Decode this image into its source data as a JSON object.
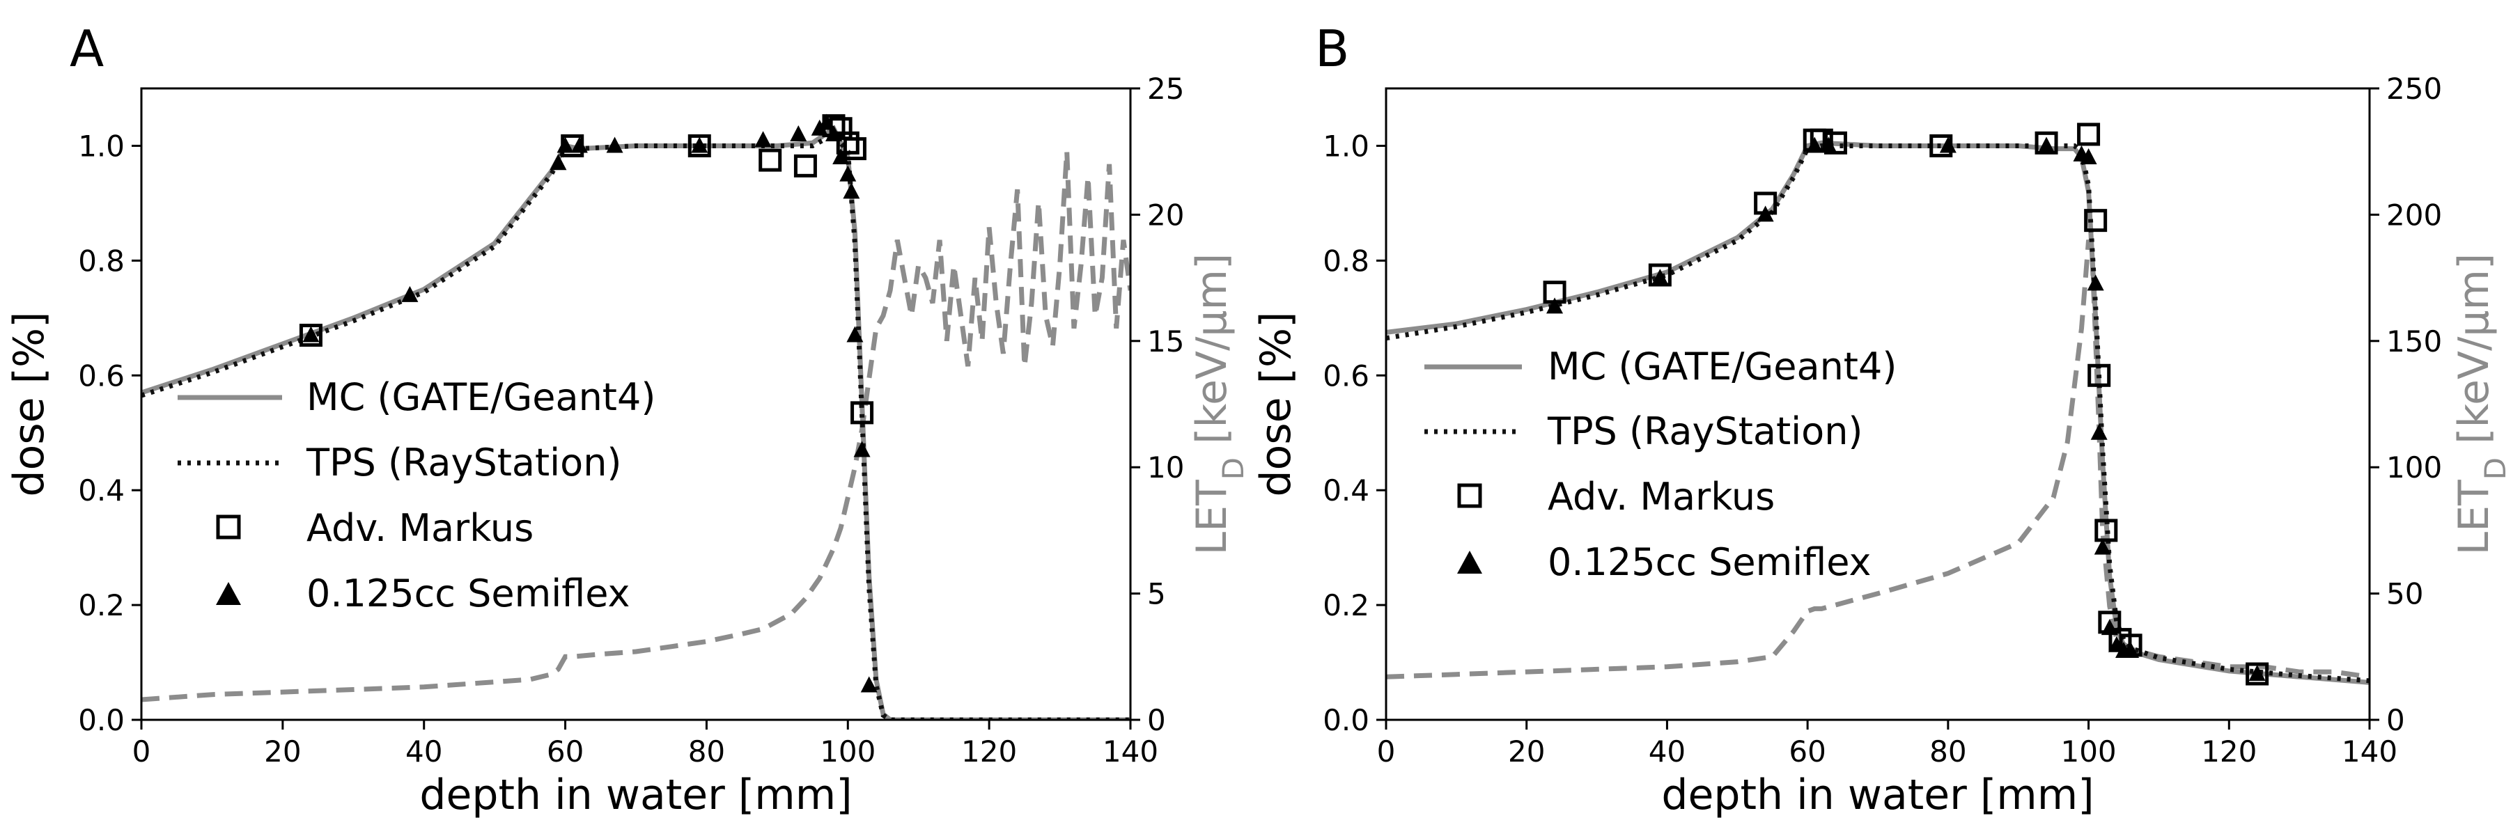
{
  "figure": {
    "panel_labels": [
      "A",
      "B"
    ]
  },
  "legend": {
    "mc": "MC (GATE/Geant4)",
    "tps": "TPS (RayStation)",
    "markus": "Adv. Markus",
    "semiflex": "0.125cc Semiflex"
  },
  "colors": {
    "mc": "#8c8c8c",
    "let": "#8c8c8c",
    "tps": "#111111",
    "markers": "#000000",
    "axis_right": "#8c8c8c"
  },
  "chart_data": [
    {
      "panel": "A",
      "type": "line",
      "xlabel": "depth in water [mm]",
      "ylabel": "dose [%]",
      "y2label_main": "LET",
      "y2label_sub": "D",
      "y2label_unit": " [keV/µm]",
      "xlim": [
        0,
        140
      ],
      "ylim": [
        0,
        1.1
      ],
      "y2lim": [
        0,
        25
      ],
      "xticks": [
        0,
        20,
        40,
        60,
        80,
        100,
        120,
        140
      ],
      "yticks": [
        0.0,
        0.2,
        0.4,
        0.6,
        0.8,
        1.0
      ],
      "y2ticks": [
        0,
        5,
        10,
        15,
        20,
        25
      ],
      "series": [
        {
          "name": "MC (GATE/Geant4)",
          "style": "solid",
          "x": [
            0,
            10,
            20,
            30,
            40,
            50,
            58,
            60,
            62,
            70,
            80,
            90,
            95,
            98,
            100,
            101,
            102,
            103,
            104,
            105,
            106,
            108,
            110,
            140
          ],
          "y": [
            0.57,
            0.61,
            0.655,
            0.7,
            0.75,
            0.83,
            0.955,
            1.0,
            0.995,
            1.0,
            1.0,
            1.0,
            1.005,
            1.03,
            0.98,
            0.85,
            0.55,
            0.25,
            0.07,
            0.01,
            0.0,
            0.0,
            0.0,
            0.0
          ]
        },
        {
          "name": "TPS (RayStation)",
          "style": "dotted",
          "x": [
            0,
            10,
            20,
            30,
            40,
            50,
            58,
            60,
            62,
            70,
            80,
            90,
            95,
            98,
            100,
            101,
            102,
            103,
            104,
            105,
            106,
            108,
            140
          ],
          "y": [
            0.565,
            0.605,
            0.65,
            0.695,
            0.745,
            0.825,
            0.95,
            0.995,
            0.995,
            1.0,
            1.0,
            1.0,
            1.0,
            1.02,
            0.99,
            0.83,
            0.53,
            0.23,
            0.06,
            0.008,
            0.0,
            0.0,
            0.0
          ]
        },
        {
          "name": "Adv. Markus",
          "style": "square",
          "x": [
            24,
            61,
            79,
            89,
            94,
            98,
            99,
            100,
            101,
            102
          ],
          "y": [
            0.67,
            1.0,
            1.0,
            0.975,
            0.965,
            1.035,
            1.03,
            1.005,
            0.995,
            0.535
          ]
        },
        {
          "name": "0.125cc Semiflex",
          "style": "triangle",
          "x": [
            24,
            38,
            59,
            60,
            62,
            67,
            79,
            88,
            93,
            96,
            97,
            98,
            99,
            100,
            100.5,
            101,
            102,
            103
          ],
          "y": [
            0.67,
            0.74,
            0.97,
            1.0,
            1.0,
            1.0,
            1.0,
            1.01,
            1.02,
            1.03,
            1.04,
            1.02,
            0.98,
            0.95,
            0.92,
            0.67,
            0.47,
            0.06
          ]
        },
        {
          "name": "LET_D",
          "axis": "right",
          "style": "dashed",
          "x": [
            0,
            10,
            20,
            30,
            40,
            50,
            55,
            58,
            59,
            60,
            61,
            65,
            70,
            75,
            80,
            85,
            88,
            90,
            92,
            94,
            96,
            98,
            99,
            100,
            101,
            102,
            103,
            104,
            105,
            106,
            107,
            108,
            109,
            110,
            111,
            112,
            113,
            114,
            115,
            116,
            117,
            118,
            119,
            120,
            121,
            122,
            123,
            124,
            125,
            126,
            127,
            128,
            129,
            130,
            131,
            132,
            133,
            134,
            135,
            136,
            137,
            138,
            139,
            140
          ],
          "y": [
            0.8,
            1.0,
            1.1,
            1.2,
            1.3,
            1.5,
            1.6,
            1.8,
            2.0,
            2.5,
            2.5,
            2.6,
            2.7,
            2.9,
            3.1,
            3.4,
            3.6,
            3.9,
            4.2,
            4.8,
            5.6,
            6.8,
            7.6,
            8.8,
            10.0,
            11.5,
            13.5,
            15.5,
            16.0,
            17.0,
            19.0,
            17.5,
            16.0,
            18.0,
            17.5,
            16.5,
            19.0,
            15.0,
            18.0,
            16.0,
            14.0,
            17.5,
            15.0,
            19.5,
            16.5,
            14.5,
            18.0,
            21.0,
            14.0,
            16.5,
            20.5,
            16.0,
            14.8,
            18.0,
            22.5,
            15.5,
            18.0,
            21.5,
            16.0,
            17.5,
            22.0,
            15.5,
            19.0,
            17.0
          ]
        }
      ]
    },
    {
      "panel": "B",
      "type": "line",
      "xlabel": "depth in water [mm]",
      "ylabel": "dose [%]",
      "y2label_main": "LET",
      "y2label_sub": "D",
      "y2label_unit": " [keV/µm]",
      "xlim": [
        0,
        140
      ],
      "ylim": [
        0,
        1.1
      ],
      "y2lim": [
        0,
        250
      ],
      "xticks": [
        0,
        20,
        40,
        60,
        80,
        100,
        120,
        140
      ],
      "yticks": [
        0.0,
        0.2,
        0.4,
        0.6,
        0.8,
        1.0
      ],
      "y2ticks": [
        0,
        50,
        100,
        150,
        200,
        250
      ],
      "series": [
        {
          "name": "MC (GATE/Geant4)",
          "style": "solid",
          "x": [
            0,
            10,
            20,
            30,
            40,
            50,
            55,
            58,
            60,
            62,
            70,
            80,
            90,
            95,
            98,
            99,
            100,
            101,
            102,
            103,
            104,
            105,
            106,
            110,
            120,
            130,
            140
          ],
          "y": [
            0.675,
            0.69,
            0.715,
            0.745,
            0.78,
            0.84,
            0.89,
            0.95,
            1.0,
            1.005,
            1.0,
            1.0,
            1.0,
            0.995,
            0.995,
            0.98,
            0.92,
            0.7,
            0.45,
            0.25,
            0.16,
            0.13,
            0.12,
            0.105,
            0.085,
            0.075,
            0.065
          ]
        },
        {
          "name": "TPS (RayStation)",
          "style": "dotted",
          "x": [
            0,
            10,
            20,
            30,
            40,
            50,
            55,
            58,
            60,
            62,
            70,
            80,
            90,
            95,
            98,
            99,
            100,
            101,
            102,
            103,
            104,
            105,
            106,
            110,
            120,
            130,
            140
          ],
          "y": [
            0.665,
            0.685,
            0.71,
            0.74,
            0.775,
            0.835,
            0.885,
            0.945,
            0.995,
            1.0,
            1.0,
            1.0,
            1.0,
            1.0,
            1.0,
            0.99,
            0.93,
            0.72,
            0.47,
            0.27,
            0.17,
            0.14,
            0.125,
            0.108,
            0.088,
            0.077,
            0.068
          ]
        },
        {
          "name": "Adv. Markus",
          "style": "square",
          "x": [
            24,
            39,
            54,
            61,
            62,
            64,
            79,
            94,
            100,
            101,
            101.5,
            102.5,
            103,
            104.5,
            106,
            124
          ],
          "y": [
            0.745,
            0.775,
            0.9,
            1.01,
            1.01,
            1.005,
            1.0,
            1.005,
            1.02,
            0.87,
            0.6,
            0.33,
            0.17,
            0.14,
            0.13,
            0.08
          ]
        },
        {
          "name": "0.125cc Semiflex",
          "style": "triangle",
          "x": [
            24,
            39,
            54,
            61,
            63,
            80,
            94,
            99,
            100,
            101,
            101.5,
            102,
            103,
            104,
            105,
            106,
            124
          ],
          "y": [
            0.72,
            0.77,
            0.88,
            1.0,
            1.0,
            1.0,
            1.0,
            0.985,
            0.98,
            0.76,
            0.5,
            0.3,
            0.16,
            0.13,
            0.12,
            0.12,
            0.08
          ]
        },
        {
          "name": "LET_D",
          "axis": "right",
          "style": "dashed",
          "x": [
            0,
            10,
            20,
            30,
            40,
            50,
            55,
            58,
            60,
            61,
            62,
            70,
            80,
            90,
            95,
            97,
            99,
            100,
            100.5,
            101,
            101.5,
            102,
            103,
            104,
            106,
            110,
            120,
            125,
            130,
            135,
            140
          ],
          "y": [
            17,
            18,
            19,
            20,
            21,
            23,
            25,
            35,
            43,
            44,
            44,
            50,
            58,
            70,
            88,
            110,
            155,
            190,
            185,
            150,
            115,
            75,
            45,
            32,
            28,
            25,
            21,
            21,
            19,
            19,
            17
          ]
        }
      ]
    }
  ]
}
